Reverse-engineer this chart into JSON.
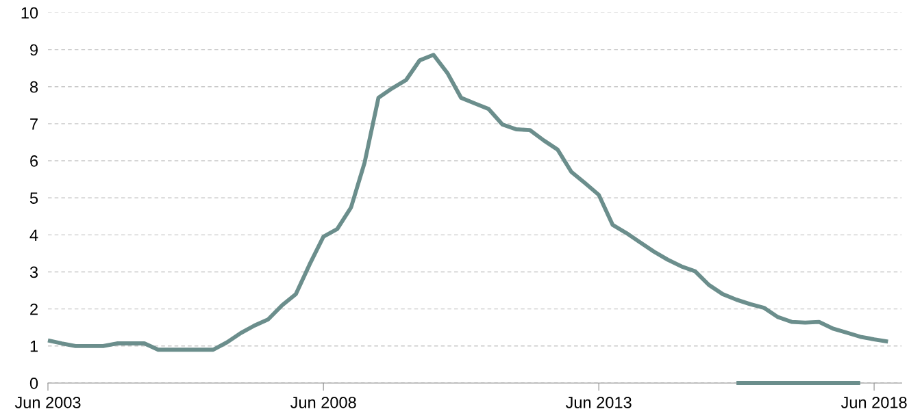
{
  "chart_data": {
    "type": "line",
    "x": [
      "2003-06",
      "2003-09",
      "2003-12",
      "2004-03",
      "2004-06",
      "2004-09",
      "2004-12",
      "2005-03",
      "2005-06",
      "2005-09",
      "2005-12",
      "2006-03",
      "2006-06",
      "2006-09",
      "2006-12",
      "2007-03",
      "2007-06",
      "2007-09",
      "2007-12",
      "2008-03",
      "2008-06",
      "2008-09",
      "2008-12",
      "2009-03",
      "2009-06",
      "2009-09",
      "2009-12",
      "2010-03",
      "2010-06",
      "2010-09",
      "2010-12",
      "2011-03",
      "2011-06",
      "2011-09",
      "2011-12",
      "2012-03",
      "2012-06",
      "2012-09",
      "2012-12",
      "2013-03",
      "2013-06",
      "2013-09",
      "2013-12",
      "2014-03",
      "2014-06",
      "2014-09",
      "2014-12",
      "2015-03",
      "2015-06",
      "2015-09",
      "2015-12",
      "2016-03",
      "2016-06",
      "2016-09",
      "2016-12",
      "2017-03",
      "2017-06",
      "2017-09",
      "2017-12",
      "2018-03",
      "2018-06",
      "2018-09"
    ],
    "series": [
      {
        "color": "#6b8e8c",
        "values": [
          1.15,
          1.07,
          1.0,
          1.0,
          1.0,
          1.07,
          1.07,
          1.07,
          0.9,
          0.9,
          0.9,
          0.9,
          0.9,
          1.1,
          1.35,
          1.55,
          1.72,
          2.1,
          2.4,
          3.2,
          3.95,
          4.16,
          4.74,
          5.95,
          7.7,
          7.96,
          8.18,
          8.71,
          8.86,
          8.37,
          7.7,
          7.55,
          7.4,
          6.98,
          6.85,
          6.83,
          6.55,
          6.3,
          5.7,
          5.4,
          5.08,
          4.27,
          4.05,
          3.8,
          3.55,
          3.33,
          3.15,
          3.02,
          2.65,
          2.4,
          2.25,
          2.13,
          2.03,
          1.78,
          1.65,
          1.63,
          1.65,
          1.47,
          1.36,
          1.25,
          1.18,
          1.12
        ]
      },
      {
        "color": "#6b8e8c",
        "x": [
          "2015-12",
          "2016-03",
          "2016-06",
          "2016-09",
          "2016-12",
          "2017-03",
          "2017-06",
          "2017-09",
          "2017-12",
          "2018-03"
        ],
        "values": [
          0,
          0,
          0,
          0,
          0,
          0,
          0,
          0,
          0,
          0
        ]
      }
    ],
    "xlim": [
      "2003-06",
      "2018-12"
    ],
    "xticks": [
      {
        "value": "2003-06",
        "label": "Jun 2003"
      },
      {
        "value": "2008-06",
        "label": "Jun 2008"
      },
      {
        "value": "2013-06",
        "label": "Jun 2013"
      },
      {
        "value": "2018-06",
        "label": "Jun 2018"
      }
    ],
    "ylim": [
      0,
      10
    ],
    "yticks": [
      0,
      1,
      2,
      3,
      4,
      5,
      6,
      7,
      8,
      9,
      10
    ],
    "grid": "y",
    "line_style": "solid",
    "marker": "none"
  }
}
